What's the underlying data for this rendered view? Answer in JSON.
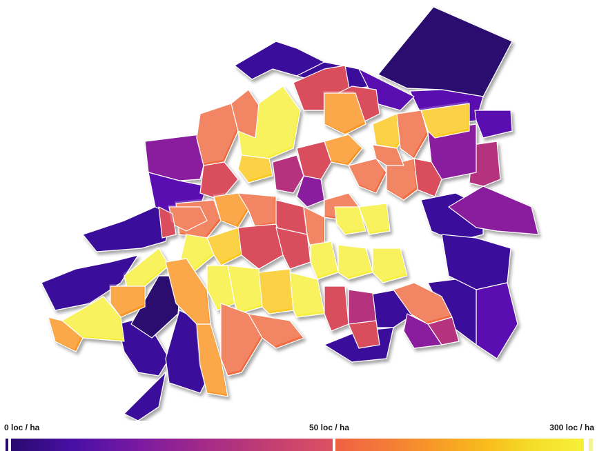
{
  "map": {
    "variable": "population density",
    "unit": "loc / ha",
    "extrusion": "height proportional to density",
    "palette": [
      "#2a0a6e",
      "#3b0f9b",
      "#5a0fb0",
      "#8a1e9e",
      "#b5317f",
      "#d94d5c",
      "#f06a3f",
      "#f99524",
      "#fbc91c",
      "#f6f03a"
    ]
  },
  "legend": {
    "min_label": "0  loc / ha",
    "mid_label": "50 loc / ha",
    "max_label": "300 loc / ha",
    "low_range_colors": [
      "#2a0a6e",
      "#4a0fa6",
      "#7a1aa0",
      "#a32a88",
      "#c23d72",
      "#dc5160"
    ],
    "high_range_colors": [
      "#ef6143",
      "#f47a37",
      "#f79a27",
      "#f8bb1c",
      "#f5de2a",
      "#f6f03a"
    ]
  }
}
